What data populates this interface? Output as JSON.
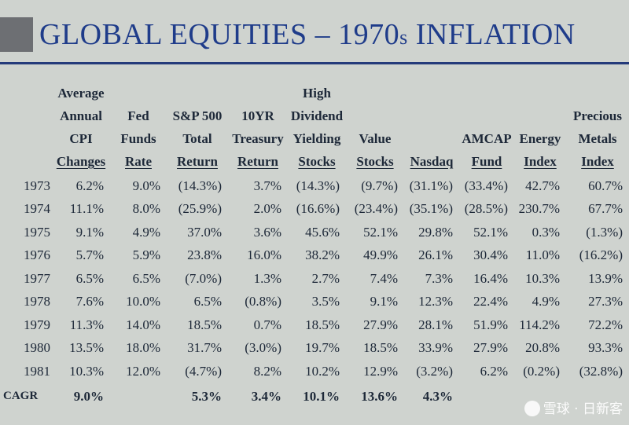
{
  "title": {
    "main": "GLOBAL EQUITIES – 1970",
    "suffix": "s",
    "end": " INFLATION"
  },
  "columns": [
    {
      "lines": [
        "",
        "",
        "",
        "",
        ""
      ]
    },
    {
      "lines": [
        "Average",
        "Annual",
        "CPI",
        "Changes"
      ]
    },
    {
      "lines": [
        "Fed",
        "Funds",
        "Rate"
      ]
    },
    {
      "lines": [
        "S&P 500",
        "Total",
        "Return"
      ]
    },
    {
      "lines": [
        "10YR",
        "Treasury",
        "Return"
      ]
    },
    {
      "lines": [
        "High",
        "Dividend",
        "Yielding",
        "Stocks"
      ]
    },
    {
      "lines": [
        "Value",
        "Stocks"
      ]
    },
    {
      "lines": [
        "Nasdaq"
      ]
    },
    {
      "lines": [
        "AMCAP",
        "Fund"
      ]
    },
    {
      "lines": [
        "Energy",
        "Index"
      ]
    },
    {
      "lines": [
        "Precious",
        "Metals",
        "Index"
      ]
    }
  ],
  "rows": [
    [
      "1973",
      "6.2%",
      "9.0%",
      "(14.3%)",
      "3.7%",
      "(14.3%)",
      "(9.7%)",
      "(31.1%)",
      "(33.4%)",
      "42.7%",
      "60.7%"
    ],
    [
      "1974",
      "11.1%",
      "8.0%",
      "(25.9%)",
      "2.0%",
      "(16.6%)",
      "(23.4%)",
      "(35.1%)",
      "(28.5%)",
      "230.7%",
      "67.7%"
    ],
    [
      "1975",
      "9.1%",
      "4.9%",
      "37.0%",
      "3.6%",
      "45.6%",
      "52.1%",
      "29.8%",
      "52.1%",
      "0.3%",
      "(1.3%)"
    ],
    [
      "1976",
      "5.7%",
      "5.9%",
      "23.8%",
      "16.0%",
      "38.2%",
      "49.9%",
      "26.1%",
      "30.4%",
      "11.0%",
      "(16.2%)"
    ],
    [
      "1977",
      "6.5%",
      "6.5%",
      "(7.0%)",
      "1.3%",
      "2.7%",
      "7.4%",
      "7.3%",
      "16.4%",
      "10.3%",
      "13.9%"
    ],
    [
      "1978",
      "7.6%",
      "10.0%",
      "6.5%",
      "(0.8%)",
      "3.5%",
      "9.1%",
      "12.3%",
      "22.4%",
      "4.9%",
      "27.3%"
    ],
    [
      "1979",
      "11.3%",
      "14.0%",
      "18.5%",
      "0.7%",
      "18.5%",
      "27.9%",
      "28.1%",
      "51.9%",
      "114.2%",
      "72.2%"
    ],
    [
      "1980",
      "13.5%",
      "18.0%",
      "31.7%",
      "(3.0%)",
      "19.7%",
      "18.5%",
      "33.9%",
      "27.9%",
      "20.8%",
      "93.3%"
    ],
    [
      "1981",
      "10.3%",
      "12.0%",
      "(4.7%)",
      "8.2%",
      "10.2%",
      "12.9%",
      "(3.2%)",
      "6.2%",
      "(0.2%)",
      "(32.8%)"
    ]
  ],
  "cagr": [
    "CAGR",
    "9.0%",
    "",
    "5.3%",
    "3.4%",
    "10.1%",
    "13.6%",
    "4.3%",
    "",
    "",
    ""
  ],
  "watermark": "雪球 · 日新客"
}
